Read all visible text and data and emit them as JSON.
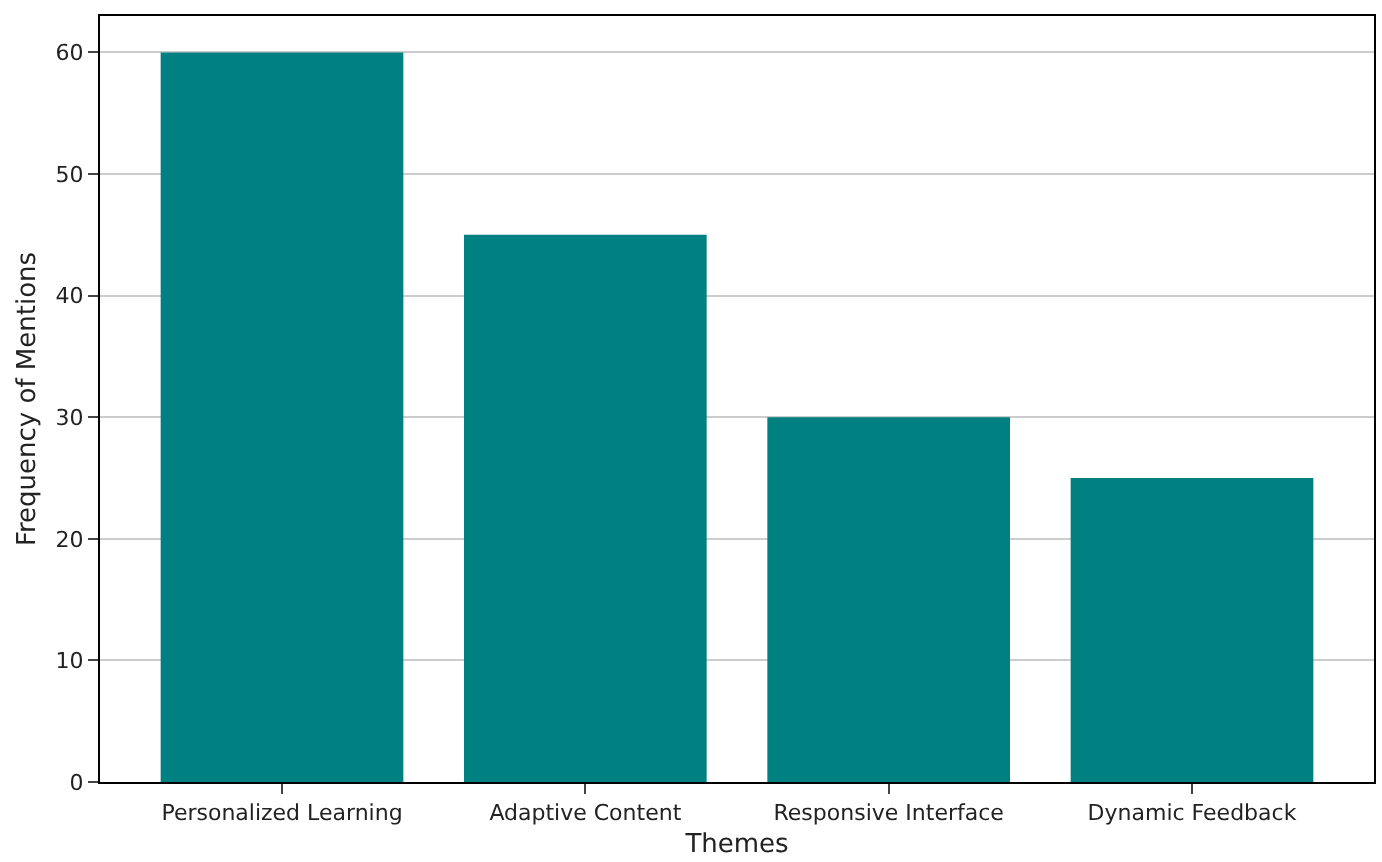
{
  "chart_data": {
    "type": "bar",
    "xlabel": "Themes",
    "ylabel": "Frequency of Mentions",
    "categories": [
      "Personalized Learning",
      "Adaptive Content",
      "Responsive Interface",
      "Dynamic Feedback"
    ],
    "values": [
      60,
      45,
      30,
      25
    ],
    "color": "#008080",
    "ylim": [
      0,
      63
    ],
    "yticks": [
      0,
      10,
      20,
      30,
      40,
      50,
      60
    ],
    "grid": "y"
  }
}
